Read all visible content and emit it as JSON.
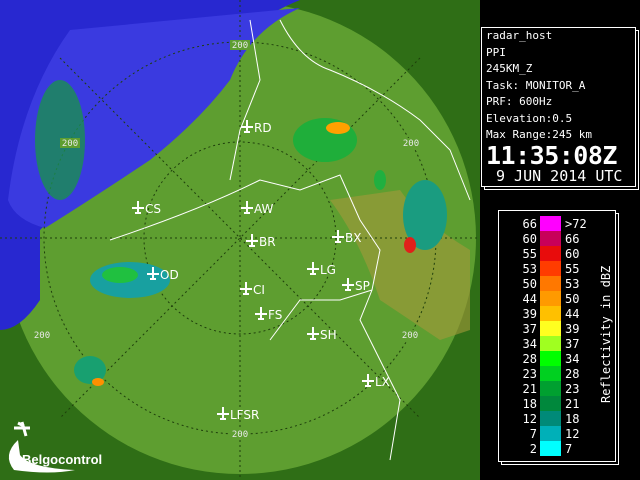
{
  "info": {
    "host": "radar_host",
    "product": "PPI",
    "range_product": "245KM_Z",
    "task": "Task: MONITOR_A",
    "prf": "PRF: 600Hz",
    "elevation": "Elevation:0.5",
    "max_range": "Max Range:245 km",
    "time": "11:35:08Z",
    "date": "9 JUN 2014 UTC"
  },
  "legend": {
    "title": "Reflectivity in dBZ",
    "left_labels": [
      "66",
      "60",
      "55",
      "53",
      "50",
      "44",
      "39",
      "37",
      "34",
      "28",
      "23",
      "21",
      "18",
      "12",
      "7",
      "2"
    ],
    "right_labels": [
      ">72",
      "66",
      "60",
      "55",
      "53",
      "50",
      "44",
      "39",
      "37",
      "34",
      "28",
      "23",
      "21",
      "18",
      "12",
      "7"
    ],
    "colors": [
      "#ff00ff",
      "#c8005a",
      "#e80c0c",
      "#ff3c00",
      "#ff7800",
      "#ff9a00",
      "#ffc000",
      "#ffff20",
      "#a0ff20",
      "#00ff00",
      "#00d020",
      "#00a030",
      "#00883c",
      "#008a78",
      "#00b0b8",
      "#00ffff"
    ]
  },
  "map": {
    "range_ring_label": "200",
    "airports": [
      "RD",
      "AW",
      "CS",
      "BR",
      "BX",
      "LG",
      "SP",
      "OD",
      "CI",
      "FS",
      "SH",
      "LX",
      "LFSR"
    ],
    "colors": {
      "land": "#3f8a1e",
      "coverage": "#6aa83a",
      "sea": "#3030d8"
    }
  },
  "logo": {
    "text": "Belgocontrol"
  }
}
